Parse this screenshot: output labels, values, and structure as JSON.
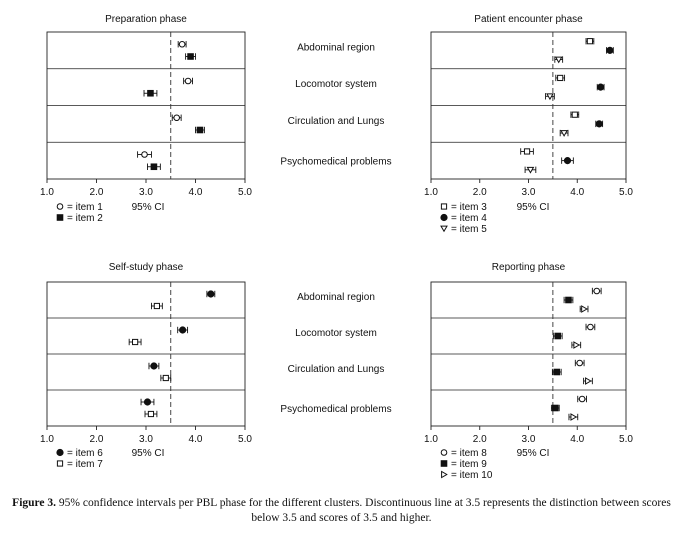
{
  "caption": {
    "label": "Figure 3.",
    "text": "95% confidence intervals per PBL phase for the different clusters. Discontinuous line at 3.5 represents the distinction between scores below 3.5 and scores of 3.5 and higher."
  },
  "clusters": [
    "Abdominal region",
    "Locomotor system",
    "Circulation and Lungs",
    "Psychomedical problems"
  ],
  "ci_label": "95% CI",
  "chart_data": [
    {
      "type": "interval",
      "title": "Preparation phase",
      "xlim": [
        1.0,
        5.0
      ],
      "xticks": [
        "1.0",
        "2.0",
        "3.0",
        "4.0",
        "5.0"
      ],
      "reference_line": 3.5,
      "legend": [
        {
          "name": "item 1",
          "marker": "open-circle"
        },
        {
          "name": "item 2",
          "marker": "filled-square"
        }
      ],
      "series": [
        {
          "name": "item 1",
          "marker": "open-circle",
          "values": [
            {
              "cluster": "Abdominal region",
              "mean": 3.73,
              "low": 3.65,
              "high": 3.81
            },
            {
              "cluster": "Locomotor system",
              "mean": 3.85,
              "low": 3.76,
              "high": 3.94
            },
            {
              "cluster": "Circulation and Lungs",
              "mean": 3.62,
              "low": 3.53,
              "high": 3.71
            },
            {
              "cluster": "Psychomedical problems",
              "mean": 2.97,
              "low": 2.83,
              "high": 3.11
            }
          ]
        },
        {
          "name": "item 2",
          "marker": "filled-square",
          "values": [
            {
              "cluster": "Abdominal region",
              "mean": 3.9,
              "low": 3.8,
              "high": 4.0
            },
            {
              "cluster": "Locomotor system",
              "mean": 3.09,
              "low": 2.96,
              "high": 3.22
            },
            {
              "cluster": "Circulation and Lungs",
              "mean": 4.09,
              "low": 4.0,
              "high": 4.18
            },
            {
              "cluster": "Psychomedical problems",
              "mean": 3.16,
              "low": 3.03,
              "high": 3.29
            }
          ]
        }
      ]
    },
    {
      "type": "interval",
      "title": "Patient encounter phase",
      "xlim": [
        1.0,
        5.0
      ],
      "xticks": [
        "1.0",
        "2.0",
        "3.0",
        "4.0",
        "5.0"
      ],
      "reference_line": 3.5,
      "legend": [
        {
          "name": "item 3",
          "marker": "open-square"
        },
        {
          "name": "item 4",
          "marker": "filled-circle"
        },
        {
          "name": "item 5",
          "marker": "open-triangle-down"
        }
      ],
      "series": [
        {
          "name": "item 3",
          "marker": "open-square",
          "values": [
            {
              "cluster": "Abdominal region",
              "mean": 4.26,
              "low": 4.18,
              "high": 4.34
            },
            {
              "cluster": "Locomotor system",
              "mean": 3.65,
              "low": 3.56,
              "high": 3.74
            },
            {
              "cluster": "Circulation and Lungs",
              "mean": 3.95,
              "low": 3.87,
              "high": 4.03
            },
            {
              "cluster": "Psychomedical problems",
              "mean": 2.97,
              "low": 2.84,
              "high": 3.1
            }
          ]
        },
        {
          "name": "item 4",
          "marker": "filled-circle",
          "values": [
            {
              "cluster": "Abdominal region",
              "mean": 4.67,
              "low": 4.6,
              "high": 4.74
            },
            {
              "cluster": "Locomotor system",
              "mean": 4.48,
              "low": 4.41,
              "high": 4.55
            },
            {
              "cluster": "Circulation and Lungs",
              "mean": 4.45,
              "low": 4.38,
              "high": 4.52
            },
            {
              "cluster": "Psychomedical problems",
              "mean": 3.8,
              "low": 3.68,
              "high": 3.92
            }
          ]
        },
        {
          "name": "item 5",
          "marker": "open-triangle-down",
          "values": [
            {
              "cluster": "Abdominal region",
              "mean": 3.62,
              "low": 3.54,
              "high": 3.7
            },
            {
              "cluster": "Locomotor system",
              "mean": 3.44,
              "low": 3.35,
              "high": 3.53
            },
            {
              "cluster": "Circulation and Lungs",
              "mean": 3.73,
              "low": 3.65,
              "high": 3.81
            },
            {
              "cluster": "Psychomedical problems",
              "mean": 3.04,
              "low": 2.93,
              "high": 3.15
            }
          ]
        }
      ]
    },
    {
      "type": "interval",
      "title": "Self-study phase",
      "xlim": [
        1.0,
        5.0
      ],
      "xticks": [
        "1.0",
        "2.0",
        "3.0",
        "4.0",
        "5.0"
      ],
      "reference_line": 3.5,
      "legend": [
        {
          "name": "item 6",
          "marker": "filled-circle"
        },
        {
          "name": "item 7",
          "marker": "open-square"
        }
      ],
      "series": [
        {
          "name": "item 6",
          "marker": "filled-circle",
          "values": [
            {
              "cluster": "Abdominal region",
              "mean": 4.31,
              "low": 4.23,
              "high": 4.39
            },
            {
              "cluster": "Locomotor system",
              "mean": 3.74,
              "low": 3.64,
              "high": 3.84
            },
            {
              "cluster": "Circulation and Lungs",
              "mean": 3.16,
              "low": 3.06,
              "high": 3.26
            },
            {
              "cluster": "Psychomedical problems",
              "mean": 3.03,
              "low": 2.9,
              "high": 3.16
            }
          ]
        },
        {
          "name": "item 7",
          "marker": "open-square",
          "values": [
            {
              "cluster": "Abdominal region",
              "mean": 3.22,
              "low": 3.11,
              "high": 3.33
            },
            {
              "cluster": "Locomotor system",
              "mean": 2.78,
              "low": 2.66,
              "high": 2.9
            },
            {
              "cluster": "Circulation and Lungs",
              "mean": 3.4,
              "low": 3.3,
              "high": 3.5
            },
            {
              "cluster": "Psychomedical problems",
              "mean": 3.1,
              "low": 2.98,
              "high": 3.22
            }
          ]
        }
      ]
    },
    {
      "type": "interval",
      "title": "Reporting phase",
      "xlim": [
        1.0,
        5.0
      ],
      "xticks": [
        "1.0",
        "2.0",
        "3.0",
        "4.0",
        "5.0"
      ],
      "reference_line": 3.5,
      "legend": [
        {
          "name": "item 8",
          "marker": "open-circle"
        },
        {
          "name": "item 9",
          "marker": "filled-square"
        },
        {
          "name": "item 10",
          "marker": "open-triangle-right"
        }
      ],
      "series": [
        {
          "name": "item 8",
          "marker": "open-circle",
          "values": [
            {
              "cluster": "Abdominal region",
              "mean": 4.4,
              "low": 4.31,
              "high": 4.49
            },
            {
              "cluster": "Locomotor system",
              "mean": 4.27,
              "low": 4.18,
              "high": 4.36
            },
            {
              "cluster": "Circulation and Lungs",
              "mean": 4.05,
              "low": 3.96,
              "high": 4.14
            },
            {
              "cluster": "Psychomedical problems",
              "mean": 4.1,
              "low": 4.01,
              "high": 4.19
            }
          ]
        },
        {
          "name": "item 9",
          "marker": "filled-square",
          "values": [
            {
              "cluster": "Abdominal region",
              "mean": 3.82,
              "low": 3.73,
              "high": 3.91
            },
            {
              "cluster": "Locomotor system",
              "mean": 3.6,
              "low": 3.51,
              "high": 3.69
            },
            {
              "cluster": "Circulation and Lungs",
              "mean": 3.58,
              "low": 3.49,
              "high": 3.67
            },
            {
              "cluster": "Psychomedical problems",
              "mean": 3.55,
              "low": 3.47,
              "high": 3.63
            }
          ]
        },
        {
          "name": "item 10",
          "marker": "open-triangle-right",
          "values": [
            {
              "cluster": "Abdominal region",
              "mean": 4.14,
              "low": 4.06,
              "high": 4.22
            },
            {
              "cluster": "Locomotor system",
              "mean": 3.98,
              "low": 3.89,
              "high": 4.07
            },
            {
              "cluster": "Circulation and Lungs",
              "mean": 4.22,
              "low": 4.13,
              "high": 4.31
            },
            {
              "cluster": "Psychomedical problems",
              "mean": 3.92,
              "low": 3.83,
              "high": 4.01
            }
          ]
        }
      ]
    }
  ]
}
